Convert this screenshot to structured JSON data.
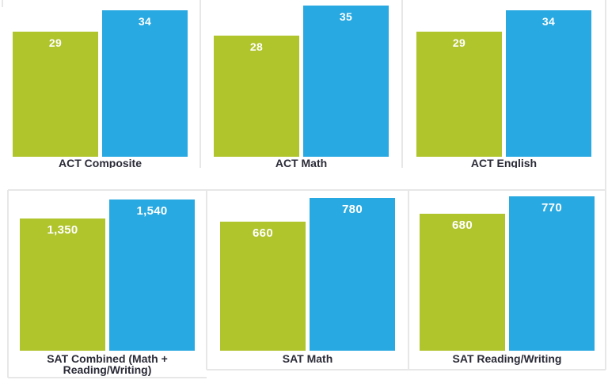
{
  "palette": {
    "green_bar": "#b0c42c",
    "blue_bar": "#29a9e1",
    "grid_line": "#e7e7e7",
    "caption_text": "#2b2b38",
    "value_text": "#ffffff",
    "background": "#ffffff"
  },
  "chart_data": [
    {
      "type": "bar",
      "title": "ACT Composite",
      "series": [
        {
          "name": "green",
          "value": 29,
          "label": "29"
        },
        {
          "name": "blue",
          "value": 34,
          "label": "34"
        }
      ],
      "ylim": [
        0,
        36.3
      ],
      "legend": "none",
      "gridlines": false
    },
    {
      "type": "bar",
      "title": "ACT Math",
      "series": [
        {
          "name": "green",
          "value": 28,
          "label": "28"
        },
        {
          "name": "blue",
          "value": 35,
          "label": "35"
        }
      ],
      "ylim": [
        0,
        36.3
      ],
      "legend": "none",
      "gridlines": false
    },
    {
      "type": "bar",
      "title": "ACT English",
      "series": [
        {
          "name": "green",
          "value": 29,
          "label": "29"
        },
        {
          "name": "blue",
          "value": 34,
          "label": "34"
        }
      ],
      "ylim": [
        0,
        36.3
      ],
      "legend": "none",
      "gridlines": false
    },
    {
      "type": "bar",
      "title": "SAT Combined (Math + Reading/Writing)",
      "series": [
        {
          "name": "green",
          "value": 1350,
          "label": "1,350"
        },
        {
          "name": "blue",
          "value": 1540,
          "label": "1,540"
        }
      ],
      "ylim": [
        0,
        1600
      ],
      "legend": "none",
      "gridlines": false
    },
    {
      "type": "bar",
      "title": "SAT Math",
      "series": [
        {
          "name": "green",
          "value": 660,
          "label": "660"
        },
        {
          "name": "blue",
          "value": 780,
          "label": "780"
        }
      ],
      "ylim": [
        0,
        800
      ],
      "legend": "none",
      "gridlines": false
    },
    {
      "type": "bar",
      "title": "SAT Reading/Writing",
      "series": [
        {
          "name": "green",
          "value": 680,
          "label": "680"
        },
        {
          "name": "blue",
          "value": 770,
          "label": "770"
        }
      ],
      "ylim": [
        0,
        780
      ],
      "legend": "none",
      "gridlines": false
    }
  ]
}
